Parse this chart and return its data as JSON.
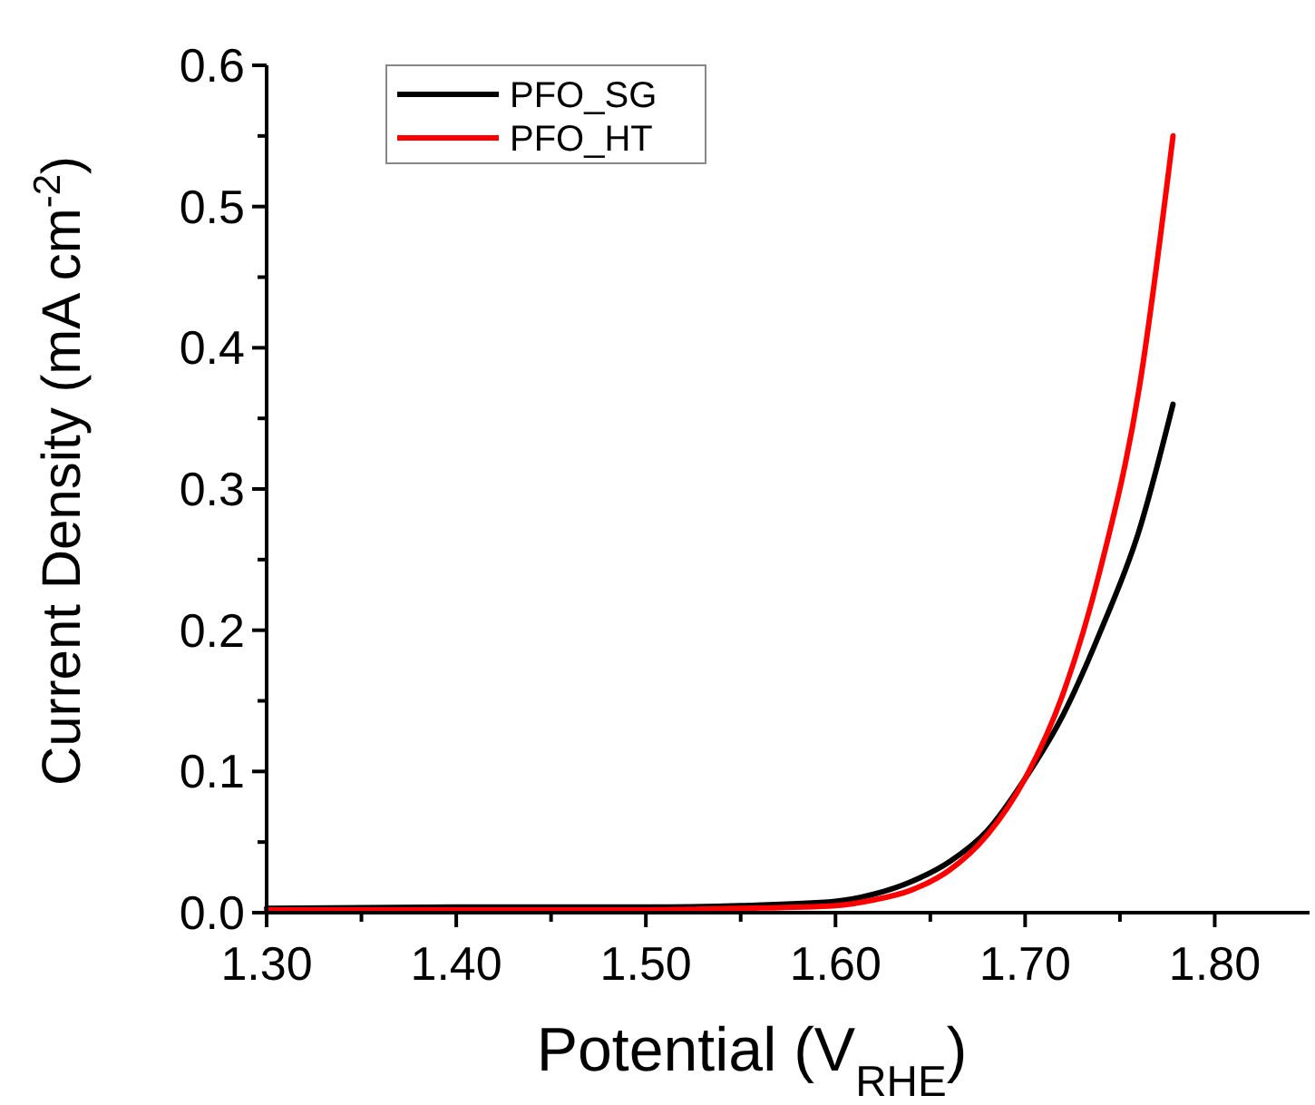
{
  "chart_data": {
    "type": "line",
    "xlabel": "Potential (V$_{RHE}$)",
    "ylabel": "Current Density (mA cm$^{-2}$)",
    "xlim": [
      1.3,
      1.85
    ],
    "ylim": [
      0,
      0.6
    ],
    "xticks": [
      {
        "value": 1.3,
        "label": "1.30"
      },
      {
        "value": 1.35,
        "label": null
      },
      {
        "value": 1.4,
        "label": "1.40"
      },
      {
        "value": 1.45,
        "label": null
      },
      {
        "value": 1.5,
        "label": "1.50"
      },
      {
        "value": 1.55,
        "label": null
      },
      {
        "value": 1.6,
        "label": "1.60"
      },
      {
        "value": 1.65,
        "label": null
      },
      {
        "value": 1.7,
        "label": "1.70"
      },
      {
        "value": 1.75,
        "label": null
      },
      {
        "value": 1.8,
        "label": "1.80"
      }
    ],
    "yticks": [
      {
        "value": 0,
        "label": "0.0"
      },
      {
        "value": 0.05,
        "label": null
      },
      {
        "value": 0.1,
        "label": "0.1"
      },
      {
        "value": 0.15,
        "label": null
      },
      {
        "value": 0.2,
        "label": "0.2"
      },
      {
        "value": 0.25,
        "label": null
      },
      {
        "value": 0.3,
        "label": "0.3"
      },
      {
        "value": 0.35,
        "label": null
      },
      {
        "value": 0.4,
        "label": "0.4"
      },
      {
        "value": 0.45,
        "label": null
      },
      {
        "value": 0.5,
        "label": "0.5"
      },
      {
        "value": 0.55,
        "label": null
      },
      {
        "value": 0.6,
        "label": "0.6"
      }
    ],
    "x": [
      1.3,
      1.4,
      1.5,
      1.55,
      1.6,
      1.62,
      1.64,
      1.66,
      1.68,
      1.7,
      1.72,
      1.74,
      1.76,
      1.778
    ],
    "series": [
      {
        "name": "PFO_SG",
        "color": "#000000",
        "values": [
          0.003,
          0.004,
          0.004,
          0.005,
          0.008,
          0.013,
          0.022,
          0.036,
          0.058,
          0.095,
          0.14,
          0.2,
          0.27,
          0.36
        ]
      },
      {
        "name": "PFO_HT",
        "color": "#ff0000",
        "values": [
          0.002,
          0.002,
          0.002,
          0.003,
          0.005,
          0.009,
          0.016,
          0.03,
          0.055,
          0.095,
          0.155,
          0.245,
          0.37,
          0.55
        ]
      }
    ],
    "legend": "top left",
    "grid": false,
    "marker": "none",
    "line_style": "solid"
  }
}
